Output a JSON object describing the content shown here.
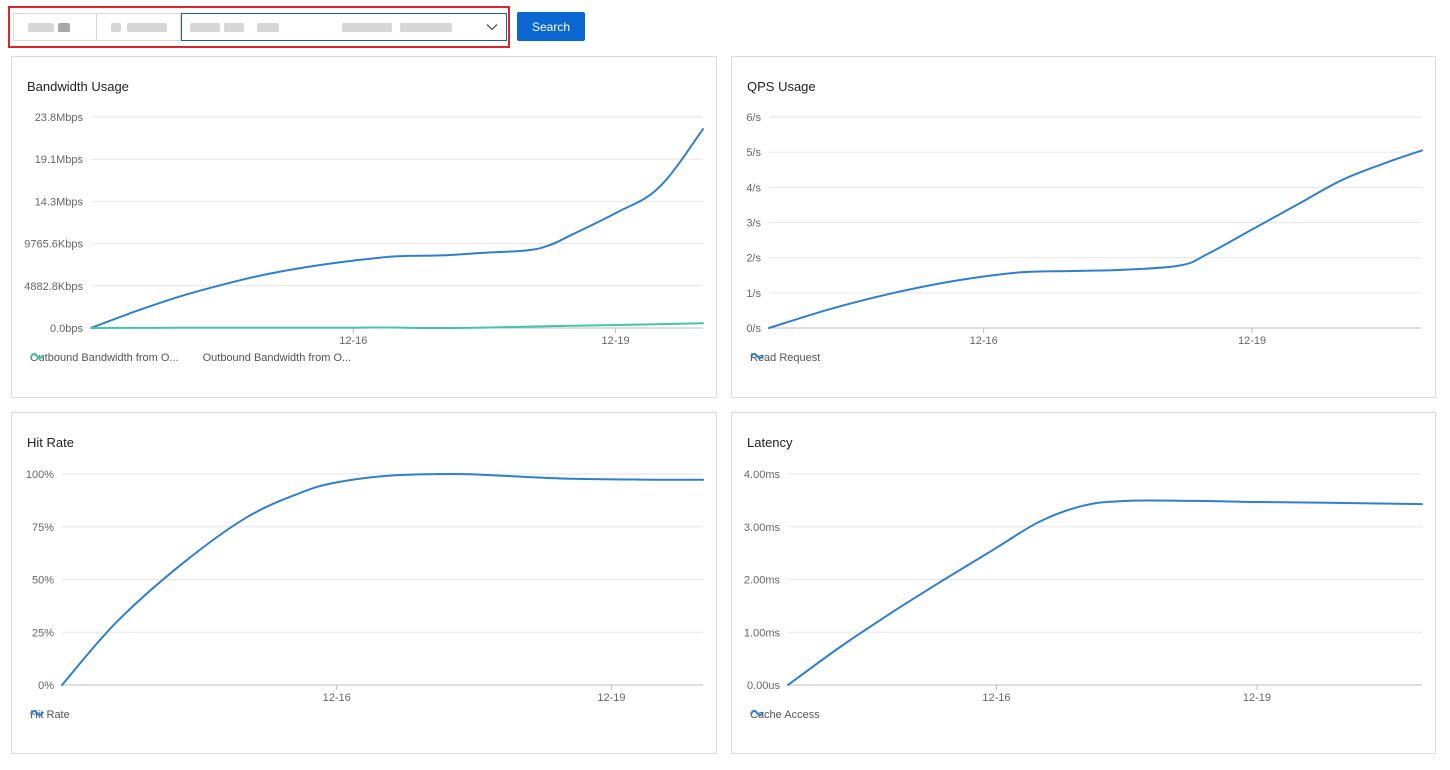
{
  "toolbar": {
    "search_label": "Search",
    "border_color": "#d9262d",
    "button_color": "#0a66d0"
  },
  "colors": {
    "blue": "#2f7fcf",
    "green": "#45c5a4"
  },
  "panels": [
    {
      "title": "Bandwidth Usage",
      "legend": [
        {
          "label": "Outbound Bandwidth from O...",
          "color": "#2f7fcf"
        },
        {
          "label": "Outbound Bandwidth from O...",
          "color": "#45c5a4"
        }
      ]
    },
    {
      "title": "QPS Usage",
      "legend": [
        {
          "label": "Read Request",
          "color": "#2f7fcf"
        }
      ]
    },
    {
      "title": "Hit Rate",
      "legend": [
        {
          "label": "Hit Rate",
          "color": "#2f7fcf"
        }
      ]
    },
    {
      "title": "Latency",
      "legend": [
        {
          "label": "Cache Access",
          "color": "#2f7fcf"
        }
      ]
    }
  ],
  "chart_data": [
    {
      "type": "line",
      "title": "Bandwidth Usage",
      "unit": "Kbps",
      "ylim": [
        0,
        24414
      ],
      "y_ticks": [
        {
          "value": 0,
          "label": "0.0bps"
        },
        {
          "value": 4882.8,
          "label": "4882.8Kbps"
        },
        {
          "value": 9765.6,
          "label": "9765.6Kbps"
        },
        {
          "value": 14648.4,
          "label": "14.3Mbps"
        },
        {
          "value": 19531.2,
          "label": "19.1Mbps"
        },
        {
          "value": 24414,
          "label": "23.8Mbps"
        }
      ],
      "xlim": [
        13.0,
        20.0
      ],
      "x_ticks": [
        {
          "value": 16,
          "label": "12-16"
        },
        {
          "value": 19,
          "label": "12-19"
        }
      ],
      "grid": true,
      "legend_position": "bottom-left",
      "series": [
        {
          "name": "Outbound Bandwidth from O...",
          "color": "#2f7fcf",
          "points": [
            [
              13.0,
              0
            ],
            [
              13.5,
              1900
            ],
            [
              14.0,
              3600
            ],
            [
              14.5,
              5000
            ],
            [
              15.0,
              6200
            ],
            [
              15.5,
              7100
            ],
            [
              16.0,
              7800
            ],
            [
              16.5,
              8300
            ],
            [
              17.0,
              8400
            ],
            [
              17.5,
              8700
            ],
            [
              18.0,
              9000
            ],
            [
              18.25,
              9600
            ],
            [
              18.5,
              10800
            ],
            [
              19.0,
              13300
            ],
            [
              19.5,
              16300
            ],
            [
              20.0,
              23000
            ]
          ]
        },
        {
          "name": "Outbound Bandwidth from O...",
          "color": "#45c5a4",
          "points": [
            [
              13.0,
              0
            ],
            [
              14.0,
              20
            ],
            [
              15.0,
              30
            ],
            [
              16.0,
              40
            ],
            [
              16.4,
              60
            ],
            [
              16.8,
              0
            ],
            [
              17.3,
              10
            ],
            [
              17.8,
              120
            ],
            [
              18.5,
              250
            ],
            [
              19.0,
              350
            ],
            [
              20.0,
              550
            ]
          ]
        }
      ]
    },
    {
      "type": "line",
      "title": "QPS Usage",
      "unit": "/s",
      "ylim": [
        0,
        6
      ],
      "y_ticks": [
        {
          "value": 0,
          "label": "0/s"
        },
        {
          "value": 1,
          "label": "1/s"
        },
        {
          "value": 2,
          "label": "2/s"
        },
        {
          "value": 3,
          "label": "3/s"
        },
        {
          "value": 4,
          "label": "4/s"
        },
        {
          "value": 5,
          "label": "5/s"
        },
        {
          "value": 6,
          "label": "6/s"
        }
      ],
      "xlim": [
        13.6,
        20.9
      ],
      "x_ticks": [
        {
          "value": 16,
          "label": "12-16"
        },
        {
          "value": 19,
          "label": "12-19"
        }
      ],
      "grid": true,
      "legend_position": "bottom-left",
      "series": [
        {
          "name": "Read Request",
          "color": "#2f7fcf",
          "points": [
            [
              13.6,
              0
            ],
            [
              14.3,
              0.55
            ],
            [
              15.0,
              1.0
            ],
            [
              15.7,
              1.35
            ],
            [
              16.4,
              1.58
            ],
            [
              17.0,
              1.62
            ],
            [
              17.6,
              1.66
            ],
            [
              18.2,
              1.78
            ],
            [
              18.5,
              2.1
            ],
            [
              19.0,
              2.8
            ],
            [
              19.5,
              3.5
            ],
            [
              20.0,
              4.2
            ],
            [
              20.5,
              4.7
            ],
            [
              20.9,
              5.05
            ]
          ]
        }
      ]
    },
    {
      "type": "line",
      "title": "Hit Rate",
      "unit": "%",
      "ylim": [
        0,
        100
      ],
      "y_ticks": [
        {
          "value": 0,
          "label": "0%"
        },
        {
          "value": 25,
          "label": "25%"
        },
        {
          "value": 50,
          "label": "50%"
        },
        {
          "value": 75,
          "label": "75%"
        },
        {
          "value": 100,
          "label": "100%"
        }
      ],
      "xlim": [
        13.0,
        20.0
      ],
      "x_ticks": [
        {
          "value": 16,
          "label": "12-16"
        },
        {
          "value": 19,
          "label": "12-19"
        }
      ],
      "grid": true,
      "legend_position": "bottom-left",
      "series": [
        {
          "name": "Hit Rate",
          "color": "#2f7fcf",
          "points": [
            [
              13.0,
              0
            ],
            [
              13.6,
              30
            ],
            [
              14.3,
              57
            ],
            [
              15.0,
              79
            ],
            [
              15.6,
              91
            ],
            [
              16.0,
              96
            ],
            [
              16.6,
              99.3
            ],
            [
              17.3,
              100
            ],
            [
              17.8,
              99.2
            ],
            [
              18.5,
              97.8
            ],
            [
              19.5,
              97.3
            ],
            [
              20.0,
              97.3
            ]
          ]
        }
      ]
    },
    {
      "type": "line",
      "title": "Latency",
      "unit": "ms",
      "ylim": [
        0,
        4
      ],
      "y_ticks": [
        {
          "value": 0,
          "label": "0.00us"
        },
        {
          "value": 1,
          "label": "1.00ms"
        },
        {
          "value": 2,
          "label": "2.00ms"
        },
        {
          "value": 3,
          "label": "3.00ms"
        },
        {
          "value": 4,
          "label": "4.00ms"
        }
      ],
      "xlim": [
        13.6,
        20.9
      ],
      "x_ticks": [
        {
          "value": 16,
          "label": "12-16"
        },
        {
          "value": 19,
          "label": "12-19"
        }
      ],
      "grid": true,
      "legend_position": "bottom-left",
      "series": [
        {
          "name": "Cache Access",
          "color": "#2f7fcf",
          "points": [
            [
              13.6,
              0
            ],
            [
              14.2,
              0.72
            ],
            [
              14.8,
              1.38
            ],
            [
              15.4,
              2.0
            ],
            [
              16.0,
              2.6
            ],
            [
              16.5,
              3.1
            ],
            [
              17.0,
              3.4
            ],
            [
              17.5,
              3.49
            ],
            [
              18.3,
              3.49
            ],
            [
              19.0,
              3.47
            ],
            [
              20.0,
              3.45
            ],
            [
              20.9,
              3.43
            ]
          ]
        }
      ]
    }
  ]
}
